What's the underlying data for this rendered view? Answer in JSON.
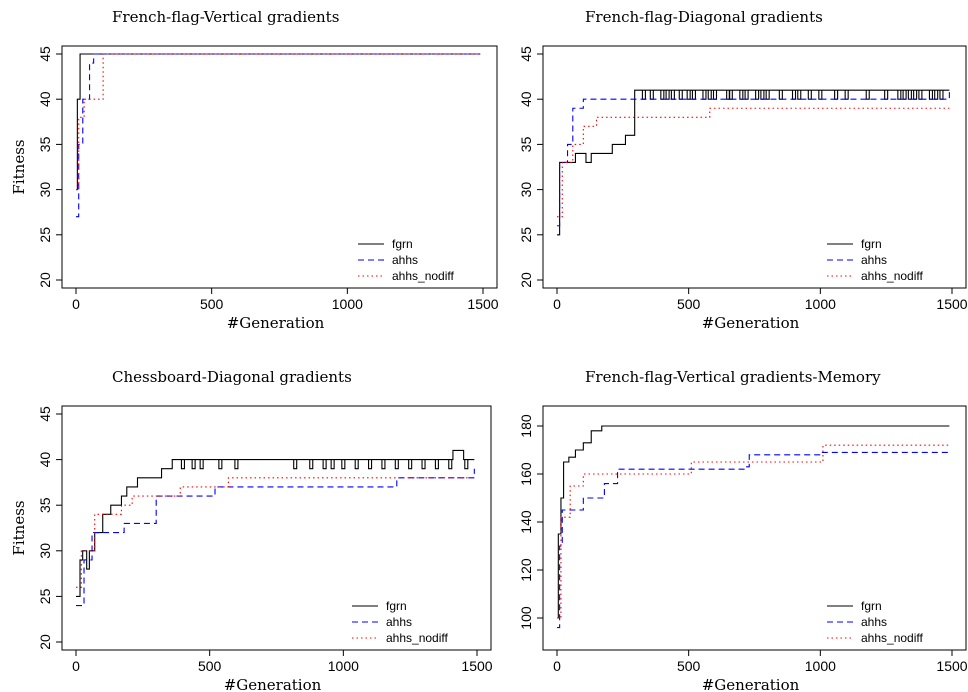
{
  "chart_data": [
    {
      "type": "line",
      "title": "French-flag-Vertical gradients",
      "xlabel": "#Generation",
      "ylabel": "Fitness",
      "xlim": [
        0,
        1500
      ],
      "ylim": [
        20,
        45
      ],
      "xticks": [
        0,
        500,
        1000,
        1500
      ],
      "yticks": [
        20,
        25,
        30,
        35,
        40,
        45
      ],
      "legend_position": "bottom-right",
      "series": [
        {
          "name": "fgrn",
          "color": "#000000",
          "dash": "solid",
          "points": [
            [
              0,
              30
            ],
            [
              5,
              40
            ],
            [
              15,
              45
            ],
            [
              1490,
              45
            ]
          ]
        },
        {
          "name": "ahhs",
          "color": "#0000ff",
          "dash": "dashed",
          "points": [
            [
              0,
              27
            ],
            [
              10,
              35
            ],
            [
              25,
              40
            ],
            [
              50,
              44
            ],
            [
              65,
              45
            ],
            [
              1490,
              45
            ]
          ]
        },
        {
          "name": "ahhs_nodiff",
          "color": "#ff0000",
          "dash": "dotted",
          "points": [
            [
              0,
              30
            ],
            [
              10,
              38
            ],
            [
              30,
              40
            ],
            [
              100,
              45
            ],
            [
              1490,
              45
            ]
          ]
        }
      ]
    },
    {
      "type": "line",
      "title": "French-flag-Diagonal gradients",
      "xlabel": "#Generation",
      "ylabel": "",
      "xlim": [
        0,
        1500
      ],
      "ylim": [
        20,
        45
      ],
      "xticks": [
        0,
        500,
        1000,
        1500
      ],
      "yticks": [
        20,
        25,
        30,
        35,
        40,
        45
      ],
      "legend_position": "bottom-right",
      "series": [
        {
          "name": "fgrn",
          "color": "#000000",
          "dash": "solid",
          "points": [
            [
              0,
              25
            ],
            [
              10,
              33
            ],
            [
              60,
              33
            ],
            [
              70,
              34
            ],
            [
              100,
              34
            ],
            [
              110,
              33
            ],
            [
              130,
              34
            ],
            [
              200,
              34
            ],
            [
              210,
              35
            ],
            [
              250,
              35
            ],
            [
              260,
              36
            ],
            [
              290,
              36
            ],
            [
              295,
              41
            ],
            [
              1490,
              41
            ]
          ],
          "spikes_down_to": 40,
          "spikes": [
            330,
            360,
            400,
            420,
            440,
            470,
            500,
            520,
            560,
            580,
            600,
            650,
            660,
            700,
            720,
            760,
            780,
            800,
            850,
            900,
            920,
            960,
            1000,
            1060,
            1100,
            1180,
            1250,
            1300,
            1320,
            1340,
            1360,
            1380,
            1420,
            1440,
            1460
          ]
        },
        {
          "name": "ahhs",
          "color": "#0000ff",
          "dash": "dashed",
          "points": [
            [
              0,
              26
            ],
            [
              10,
              33
            ],
            [
              40,
              35
            ],
            [
              60,
              39
            ],
            [
              100,
              40
            ],
            [
              1490,
              41
            ]
          ]
        },
        {
          "name": "ahhs_nodiff",
          "color": "#ff0000",
          "dash": "dotted",
          "points": [
            [
              0,
              27
            ],
            [
              20,
              33
            ],
            [
              60,
              35
            ],
            [
              100,
              37
            ],
            [
              150,
              38
            ],
            [
              570,
              38
            ],
            [
              580,
              39
            ],
            [
              1490,
              39
            ]
          ]
        }
      ]
    },
    {
      "type": "line",
      "title": "Chessboard-Diagonal gradients",
      "xlabel": "#Generation",
      "ylabel": "Fitness",
      "xlim": [
        0,
        1500
      ],
      "ylim": [
        20,
        45
      ],
      "xticks": [
        0,
        500,
        1000,
        1500
      ],
      "yticks": [
        20,
        25,
        30,
        35,
        40,
        45
      ],
      "legend_position": "bottom-right",
      "series": [
        {
          "name": "fgrn",
          "color": "#000000",
          "dash": "solid",
          "points": [
            [
              0,
              25
            ],
            [
              15,
              29
            ],
            [
              25,
              30
            ],
            [
              40,
              28
            ],
            [
              50,
              30
            ],
            [
              70,
              32
            ],
            [
              100,
              34
            ],
            [
              130,
              35
            ],
            [
              170,
              36
            ],
            [
              190,
              37
            ],
            [
              230,
              38
            ],
            [
              300,
              38
            ],
            [
              320,
              39
            ],
            [
              360,
              40
            ],
            [
              1400,
              40
            ],
            [
              1410,
              41
            ],
            [
              1440,
              41
            ],
            [
              1450,
              40
            ],
            [
              1490,
              40
            ]
          ],
          "spikes_down_to": 39,
          "spikes": [
            400,
            440,
            470,
            540,
            600,
            820,
            880,
            930,
            960,
            1000,
            1050,
            1100,
            1150,
            1200,
            1250,
            1300,
            1350,
            1400,
            1460
          ]
        },
        {
          "name": "ahhs",
          "color": "#0000ff",
          "dash": "dashed",
          "points": [
            [
              0,
              24
            ],
            [
              30,
              29
            ],
            [
              60,
              32
            ],
            [
              180,
              33
            ],
            [
              300,
              36
            ],
            [
              500,
              36
            ],
            [
              520,
              37
            ],
            [
              1190,
              37
            ],
            [
              1200,
              38
            ],
            [
              1490,
              39
            ]
          ]
        },
        {
          "name": "ahhs_nodiff",
          "color": "#ff0000",
          "dash": "dotted",
          "points": [
            [
              0,
              26
            ],
            [
              20,
              30
            ],
            [
              70,
              34
            ],
            [
              170,
              35
            ],
            [
              210,
              36
            ],
            [
              390,
              37
            ],
            [
              570,
              38
            ],
            [
              1490,
              38
            ]
          ]
        }
      ]
    },
    {
      "type": "line",
      "title": "French-flag-Vertical gradients-Memory",
      "xlabel": "#Generation",
      "ylabel": "",
      "xlim": [
        0,
        1500
      ],
      "ylim": [
        90,
        185
      ],
      "xticks": [
        0,
        500,
        1000,
        1500
      ],
      "yticks": [
        100,
        120,
        140,
        160,
        180
      ],
      "legend_position": "bottom-right",
      "series": [
        {
          "name": "fgrn",
          "color": "#000000",
          "dash": "solid",
          "points": [
            [
              0,
              100
            ],
            [
              5,
              135
            ],
            [
              15,
              150
            ],
            [
              25,
              165
            ],
            [
              45,
              167
            ],
            [
              70,
              170
            ],
            [
              100,
              173
            ],
            [
              130,
              178
            ],
            [
              170,
              180
            ],
            [
              1490,
              180
            ]
          ]
        },
        {
          "name": "ahhs",
          "color": "#0000ff",
          "dash": "dashed",
          "points": [
            [
              0,
              96
            ],
            [
              10,
              130
            ],
            [
              20,
              145
            ],
            [
              100,
              150
            ],
            [
              180,
              156
            ],
            [
              230,
              162
            ],
            [
              720,
              163
            ],
            [
              730,
              168
            ],
            [
              1000,
              169
            ],
            [
              1490,
              169
            ]
          ]
        },
        {
          "name": "ahhs_nodiff",
          "color": "#ff0000",
          "dash": "dotted",
          "points": [
            [
              0,
              100
            ],
            [
              15,
              142
            ],
            [
              50,
              155
            ],
            [
              100,
              160
            ],
            [
              500,
              160
            ],
            [
              510,
              165
            ],
            [
              1000,
              165
            ],
            [
              1010,
              172
            ],
            [
              1490,
              172
            ]
          ]
        }
      ]
    }
  ]
}
